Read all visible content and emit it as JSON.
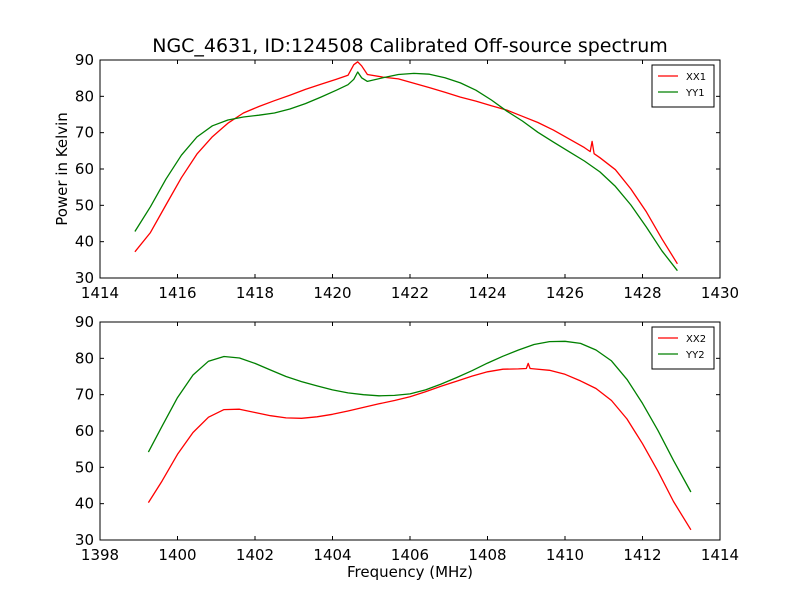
{
  "chart_data": [
    {
      "type": "line",
      "title": "NGC_4631, ID:124508 Calibrated Off-source spectrum",
      "xlabel": "",
      "ylabel": "Power in Kelvin",
      "xlim": [
        1414,
        1430
      ],
      "ylim": [
        30,
        90
      ],
      "xticks": [
        "1414",
        "1416",
        "1418",
        "1420",
        "1422",
        "1424",
        "1426",
        "1428",
        "1430"
      ],
      "yticks": [
        "30",
        "40",
        "50",
        "60",
        "70",
        "80",
        "90"
      ],
      "legend_position": "top-right",
      "series": [
        {
          "name": "XX1",
          "color": "#ff0000",
          "x": [
            1414.9,
            1415.3,
            1415.7,
            1416.1,
            1416.5,
            1416.9,
            1417.3,
            1417.7,
            1418.1,
            1418.5,
            1418.9,
            1419.3,
            1419.7,
            1420.1,
            1420.4,
            1420.55,
            1420.65,
            1420.75,
            1420.9,
            1421.3,
            1421.7,
            1422.1,
            1422.5,
            1422.9,
            1423.3,
            1423.7,
            1424.1,
            1424.5,
            1424.9,
            1425.3,
            1425.7,
            1426.1,
            1426.5,
            1426.65,
            1426.7,
            1426.75,
            1426.9,
            1427.3,
            1427.7,
            1428.1,
            1428.5,
            1428.9
          ],
          "y": [
            37.2,
            42.5,
            50.1,
            57.6,
            64.1,
            68.9,
            72.6,
            75.4,
            77.2,
            78.8,
            80.3,
            81.9,
            83.3,
            84.7,
            85.8,
            88.7,
            89.5,
            88.4,
            86.0,
            85.3,
            84.8,
            83.6,
            82.4,
            81.1,
            79.8,
            78.7,
            77.4,
            76.2,
            74.5,
            72.8,
            70.7,
            68.3,
            65.9,
            64.8,
            67.6,
            64.2,
            63.1,
            59.8,
            54.5,
            48.2,
            40.8,
            33.9
          ]
        },
        {
          "name": "YY1",
          "color": "#008000",
          "x": [
            1414.9,
            1415.3,
            1415.7,
            1416.1,
            1416.5,
            1416.9,
            1417.3,
            1417.7,
            1418.1,
            1418.5,
            1418.9,
            1419.3,
            1419.7,
            1420.1,
            1420.4,
            1420.55,
            1420.65,
            1420.75,
            1420.9,
            1421.3,
            1421.7,
            1422.1,
            1422.5,
            1422.9,
            1423.3,
            1423.7,
            1424.1,
            1424.5,
            1424.9,
            1425.3,
            1425.7,
            1426.1,
            1426.5,
            1426.9,
            1427.3,
            1427.7,
            1428.1,
            1428.5,
            1428.9
          ],
          "y": [
            42.8,
            49.6,
            57.2,
            63.8,
            68.8,
            71.9,
            73.5,
            74.3,
            74.8,
            75.4,
            76.5,
            78.0,
            79.8,
            81.7,
            83.2,
            84.7,
            86.7,
            85.1,
            84.1,
            85.1,
            86.0,
            86.3,
            86.1,
            85.1,
            83.7,
            81.7,
            79.0,
            75.9,
            73.2,
            70.1,
            67.4,
            64.8,
            62.2,
            59.2,
            55.2,
            50.1,
            44.0,
            37.5,
            32.0
          ]
        }
      ]
    },
    {
      "type": "line",
      "title": "",
      "xlabel": "Frequency (MHz)",
      "ylabel": "",
      "xlim": [
        1398,
        1414
      ],
      "ylim": [
        30,
        90
      ],
      "xticks": [
        "1398",
        "1400",
        "1402",
        "1404",
        "1406",
        "1408",
        "1410",
        "1412",
        "1414"
      ],
      "yticks": [
        "30",
        "40",
        "50",
        "60",
        "70",
        "80",
        "90"
      ],
      "legend_position": "top-right",
      "series": [
        {
          "name": "XX2",
          "color": "#ff0000",
          "x": [
            1399.25,
            1399.6,
            1400.0,
            1400.4,
            1400.8,
            1401.2,
            1401.6,
            1402.0,
            1402.4,
            1402.8,
            1403.2,
            1403.6,
            1404.0,
            1404.4,
            1404.8,
            1405.2,
            1405.6,
            1406.0,
            1406.4,
            1406.8,
            1407.2,
            1407.6,
            1408.0,
            1408.4,
            1408.8,
            1409.0,
            1409.05,
            1409.1,
            1409.2,
            1409.6,
            1410.0,
            1410.4,
            1410.8,
            1411.2,
            1411.6,
            1412.0,
            1412.4,
            1412.8,
            1413.25
          ],
          "y": [
            40.3,
            46.2,
            53.6,
            59.6,
            63.8,
            65.9,
            66.0,
            65.1,
            64.2,
            63.6,
            63.5,
            63.9,
            64.6,
            65.5,
            66.5,
            67.5,
            68.4,
            69.4,
            70.8,
            72.3,
            73.7,
            75.1,
            76.3,
            77.0,
            77.1,
            77.2,
            78.6,
            77.2,
            77.1,
            76.7,
            75.6,
            73.8,
            71.7,
            68.4,
            63.3,
            56.5,
            48.9,
            40.6,
            32.8
          ]
        },
        {
          "name": "YY2",
          "color": "#008000",
          "x": [
            1399.25,
            1399.6,
            1400.0,
            1400.4,
            1400.8,
            1401.2,
            1401.6,
            1402.0,
            1402.4,
            1402.8,
            1403.2,
            1403.6,
            1404.0,
            1404.4,
            1404.8,
            1405.2,
            1405.6,
            1406.0,
            1406.4,
            1406.8,
            1407.2,
            1407.6,
            1408.0,
            1408.4,
            1408.8,
            1409.2,
            1409.6,
            1410.0,
            1410.4,
            1410.8,
            1411.2,
            1411.6,
            1412.0,
            1412.4,
            1412.8,
            1413.25
          ],
          "y": [
            54.2,
            61.3,
            69.2,
            75.4,
            79.2,
            80.5,
            80.1,
            78.6,
            76.8,
            75.0,
            73.6,
            72.4,
            71.3,
            70.5,
            70.0,
            69.7,
            69.8,
            70.2,
            71.3,
            72.9,
            74.7,
            76.6,
            78.7,
            80.6,
            82.3,
            83.8,
            84.6,
            84.7,
            84.1,
            82.3,
            79.3,
            74.2,
            67.6,
            60.1,
            51.9,
            43.2
          ]
        }
      ]
    }
  ]
}
